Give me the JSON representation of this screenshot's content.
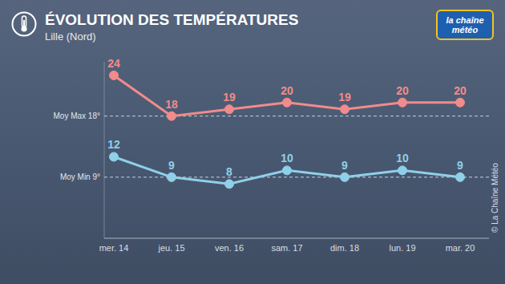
{
  "chart_data": {
    "type": "line",
    "title": "ÉVOLUTION DES TEMPÉRATURES",
    "subtitle": "Lille (Nord)",
    "logo": "la chaîne météo",
    "credit": "© La Chaîne Météo",
    "categories": [
      "mer. 14",
      "jeu. 15",
      "ven. 16",
      "sam. 17",
      "dim. 18",
      "lun. 19",
      "mar. 20"
    ],
    "series": [
      {
        "color": "#f28b8b",
        "values": [
          24,
          18,
          19,
          20,
          19,
          20,
          20
        ],
        "marker": "circle"
      },
      {
        "color": "#8fd0e8",
        "values": [
          12,
          9,
          8,
          10,
          9,
          10,
          9
        ],
        "marker": "circle"
      }
    ],
    "reference_lines": [
      {
        "value": 18,
        "label": "Moy Max 18°"
      },
      {
        "value": 9,
        "label": "Moy Min 9°"
      }
    ],
    "ylim": [
      0,
      26
    ],
    "yticks": [],
    "tick_labels": "x",
    "grid": false,
    "data_labels": true
  }
}
